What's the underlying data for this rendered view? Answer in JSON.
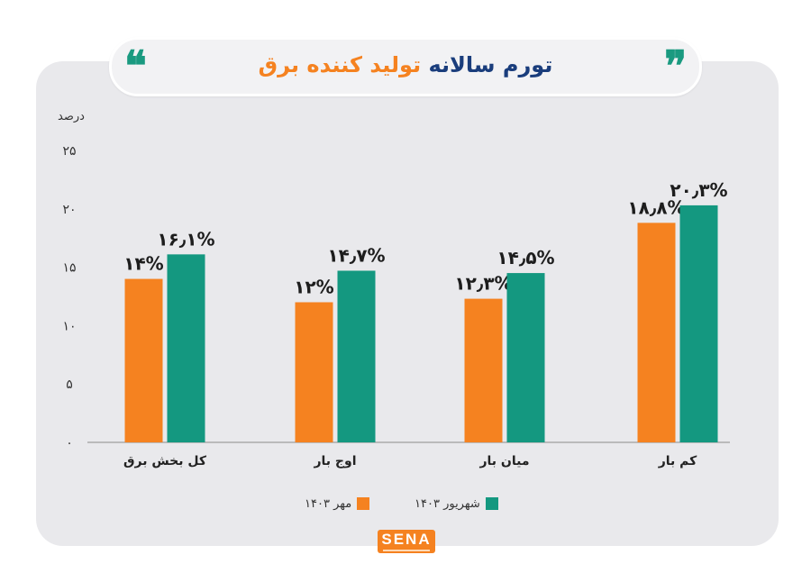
{
  "header": {
    "title_part1": "تورم سالانه",
    "title_part2": "تولید کننده برق",
    "quote_open": "❝",
    "quote_close": "❞"
  },
  "chart_data": {
    "type": "bar",
    "ylabel": "درصد",
    "ylim": [
      0,
      25
    ],
    "yticks": [
      "۰",
      "۵",
      "۱۰",
      "۱۵",
      "۲۰",
      "۲۵"
    ],
    "ytick_values": [
      0,
      5,
      10,
      15,
      20,
      25
    ],
    "categories": [
      "کل بخش برق",
      "اوج بار",
      "میان بار",
      "کم بار"
    ],
    "series": [
      {
        "name": "مهر ۱۴۰۳",
        "color": "#f58220",
        "values": [
          14,
          12,
          12.3,
          18.8
        ],
        "labels": [
          "۱۴%",
          "۱۲%",
          "۱۲٫۳%",
          "۱۸٫۸%"
        ]
      },
      {
        "name": "شهریور ۱۴۰۳",
        "color": "#149880",
        "values": [
          16.1,
          14.7,
          14.5,
          20.3
        ],
        "labels": [
          "۱۶٫۱%",
          "۱۴٫۷%",
          "۱۴٫۵%",
          "۲۰٫۳%"
        ]
      }
    ],
    "grid": false,
    "legend_position": "bottom-center"
  },
  "logo": {
    "text": "SENA"
  },
  "colors": {
    "accent_orange": "#f58220",
    "accent_green": "#149880",
    "title_blue": "#1a3d7c"
  }
}
